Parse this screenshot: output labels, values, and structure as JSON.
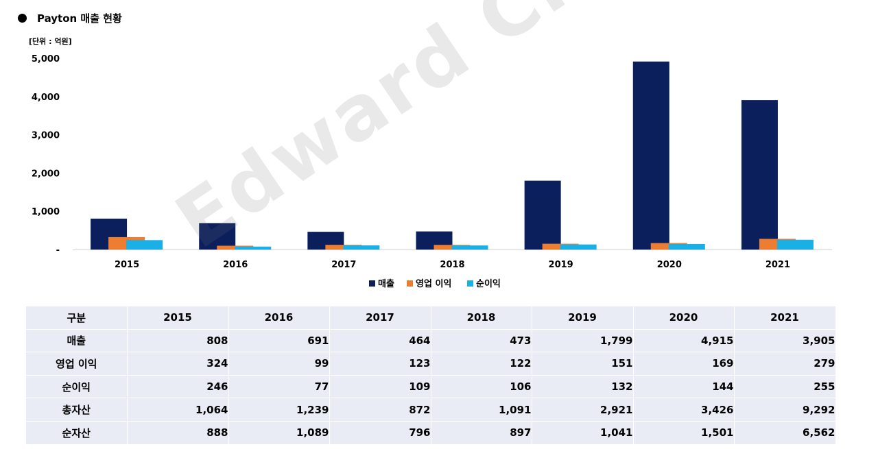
{
  "header": {
    "title": "Payton 매출 현황",
    "unit": "[단위 : 억원]"
  },
  "watermark": "Edward Choi",
  "colors": {
    "sales": "#0a1f5c",
    "op_profit": "#ed7d31",
    "net_profit": "#1ab0e6",
    "table_bg": "#e9ebf5"
  },
  "chart_data": {
    "type": "bar",
    "categories": [
      "2015",
      "2016",
      "2017",
      "2018",
      "2019",
      "2020",
      "2021"
    ],
    "series": [
      {
        "name": "매출",
        "values": [
          808,
          691,
          464,
          473,
          1799,
          4915,
          3905
        ]
      },
      {
        "name": "영업 이익",
        "values": [
          324,
          99,
          123,
          122,
          151,
          169,
          279
        ]
      },
      {
        "name": "순이익",
        "values": [
          246,
          77,
          109,
          106,
          132,
          144,
          255
        ]
      }
    ],
    "yticks": [
      "-",
      "1,000",
      "2,000",
      "3,000",
      "4,000",
      "5,000"
    ],
    "ylim": [
      0,
      5000
    ],
    "grid": false,
    "legend_position": "bottom"
  },
  "table": {
    "header": [
      "구분",
      "2015",
      "2016",
      "2017",
      "2018",
      "2019",
      "2020",
      "2021"
    ],
    "rows": [
      [
        "매출",
        "808",
        "691",
        "464",
        "473",
        "1,799",
        "4,915",
        "3,905"
      ],
      [
        "영업 이익",
        "324",
        "99",
        "123",
        "122",
        "151",
        "169",
        "279"
      ],
      [
        "순이익",
        "246",
        "77",
        "109",
        "106",
        "132",
        "144",
        "255"
      ],
      [
        "총자산",
        "1,064",
        "1,239",
        "872",
        "1,091",
        "2,921",
        "3,426",
        "9,292"
      ],
      [
        "순자산",
        "888",
        "1,089",
        "796",
        "897",
        "1,041",
        "1,501",
        "6,562"
      ]
    ]
  }
}
